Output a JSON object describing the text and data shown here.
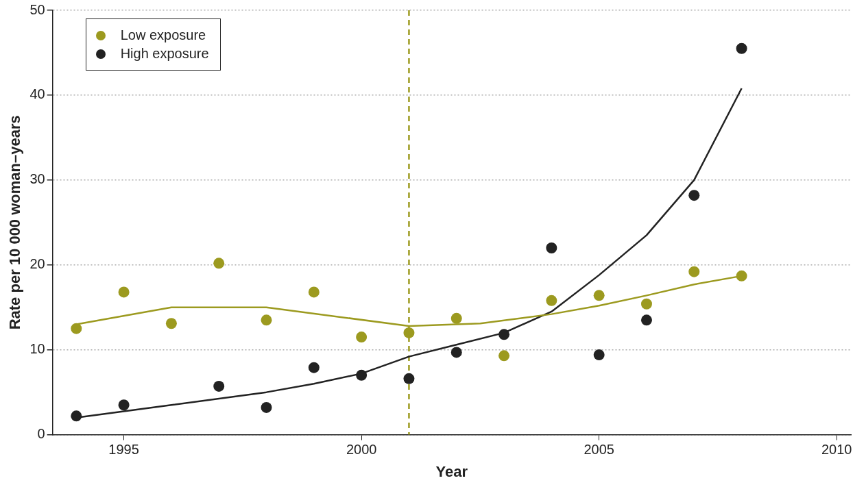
{
  "chart_data": {
    "type": "scatter",
    "xlabel": "Year",
    "ylabel": "Rate per 10 000 woman–years",
    "xlim": [
      1993.5,
      2010.3
    ],
    "xticks": [
      1995,
      2000,
      2005,
      2010
    ],
    "ylim": [
      0,
      50
    ],
    "yticks": [
      0,
      10,
      20,
      30,
      40,
      50
    ],
    "grid": "y",
    "legend": "top left",
    "series": [
      {
        "name": "Low exposure",
        "color": "#9c9a1f",
        "marker": "circle",
        "x": [
          1994,
          1995,
          1996,
          1997,
          1998,
          1999,
          2000,
          2001,
          2002,
          2003,
          2004,
          2005,
          2006,
          2007,
          2008
        ],
        "values": [
          12.5,
          16.8,
          13.1,
          20.2,
          13.5,
          16.8,
          11.5,
          12.0,
          13.7,
          9.3,
          15.8,
          16.4,
          15.4,
          19.2,
          18.7
        ]
      },
      {
        "name": "High exposure",
        "color": "#222222",
        "marker": "circle",
        "x": [
          1994,
          1995,
          1997,
          1998,
          1999,
          2000,
          2001,
          2002,
          2003,
          2004,
          2005,
          2006,
          2007,
          2008
        ],
        "values": [
          2.2,
          3.5,
          5.7,
          3.2,
          7.9,
          7.0,
          6.6,
          9.7,
          11.8,
          22.0,
          9.4,
          13.5,
          28.2,
          45.5
        ]
      },
      {
        "type": "line",
        "color": "#9c9a1f",
        "line_style": "solid",
        "marker": "none",
        "x": [
          1994,
          1996,
          1998,
          2001,
          2002.5,
          2004,
          2005,
          2006,
          2007,
          2008
        ],
        "values": [
          13.0,
          15.0,
          15.0,
          12.8,
          13.1,
          14.2,
          15.2,
          16.4,
          17.7,
          18.7
        ]
      },
      {
        "type": "line",
        "color": "#222222",
        "line_style": "solid",
        "marker": "none",
        "x": [
          1994,
          1996,
          1998,
          1999,
          2000,
          2001,
          2002,
          2003,
          2004,
          2005,
          2006,
          2007,
          2008
        ],
        "values": [
          2.0,
          3.5,
          5.0,
          6.0,
          7.2,
          9.2,
          10.6,
          12.0,
          14.5,
          18.8,
          23.5,
          30.0,
          40.8
        ]
      }
    ],
    "ref_lines": [
      {
        "axis": "x",
        "value": 2001,
        "color": "#9c9a1f",
        "line_style": "dashed"
      }
    ]
  }
}
